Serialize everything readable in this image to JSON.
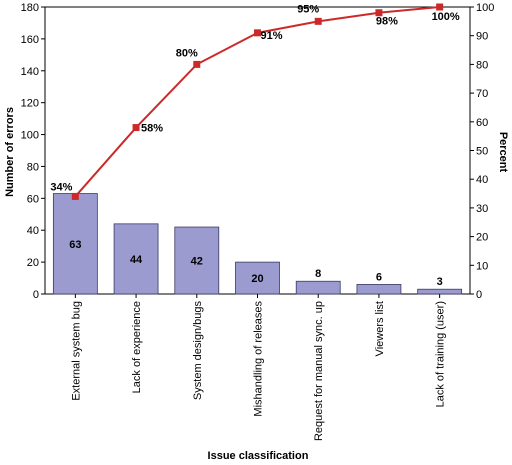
{
  "chart_data": {
    "type": "bar",
    "categories": [
      "External system bug",
      "Lack of experience",
      "System design/bugs",
      "Mishandling of releases",
      "Request for manual sync. up",
      "Viewers list",
      "Lack of training (user)"
    ],
    "values": [
      63,
      44,
      42,
      20,
      8,
      6,
      3
    ],
    "bar_labels": [
      "63",
      "44",
      "42",
      "20",
      "8",
      "6",
      "3"
    ],
    "cumulative_percent": [
      34,
      58,
      80,
      91,
      95,
      98,
      100
    ],
    "percent_labels": [
      "34%",
      "58%",
      "80%",
      "91%",
      "95%",
      "98%",
      "100%"
    ],
    "xlabel": "Issue classification",
    "ylabel": "Number of errors",
    "y2label": "Percent",
    "ylim": [
      0,
      180
    ],
    "y2lim": [
      0,
      100
    ],
    "yticks": [
      0,
      20,
      40,
      60,
      80,
      100,
      120,
      140,
      160,
      180
    ],
    "y2ticks": [
      0,
      10,
      20,
      30,
      40,
      50,
      60,
      70,
      80,
      90,
      100
    ],
    "colors": {
      "bar_fill": "#9b9bcf",
      "bar_stroke": "#3a3a66",
      "line": "#cc2a2a",
      "marker": "#cc2a2a"
    }
  }
}
